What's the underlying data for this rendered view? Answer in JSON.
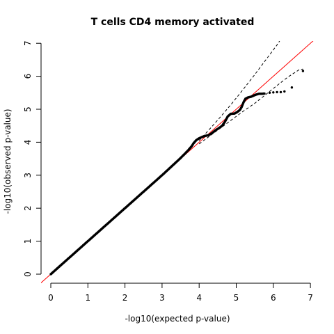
{
  "chart_data": {
    "type": "scatter",
    "title": "T cells CD4 memory activated",
    "xlabel": "-log10(expected p-value)",
    "ylabel": "-log10(observed p-value)",
    "xlim": [
      0,
      7
    ],
    "ylim": [
      0,
      7
    ],
    "xticks": [
      0,
      1,
      2,
      3,
      4,
      5,
      6,
      7
    ],
    "yticks": [
      0,
      1,
      2,
      3,
      4,
      5,
      6,
      7
    ],
    "grid": false,
    "legend": "none",
    "reference_line": {
      "label": "y = x",
      "color": "#ff0000"
    },
    "points_color": "#000000",
    "points_curve": [
      [
        0.0,
        0.0
      ],
      [
        0.5,
        0.5
      ],
      [
        1.0,
        1.0
      ],
      [
        1.5,
        1.5
      ],
      [
        2.0,
        2.0
      ],
      [
        2.5,
        2.5
      ],
      [
        3.0,
        3.0
      ],
      [
        3.5,
        3.52
      ],
      [
        3.7,
        3.75
      ],
      [
        3.8,
        3.88
      ],
      [
        3.85,
        3.97
      ],
      [
        3.92,
        4.06
      ],
      [
        4.0,
        4.12
      ],
      [
        4.08,
        4.16
      ],
      [
        4.15,
        4.19
      ],
      [
        4.25,
        4.21
      ],
      [
        4.35,
        4.28
      ],
      [
        4.45,
        4.37
      ],
      [
        4.55,
        4.44
      ],
      [
        4.62,
        4.5
      ],
      [
        4.7,
        4.63
      ],
      [
        4.77,
        4.78
      ],
      [
        4.85,
        4.86
      ],
      [
        4.95,
        4.87
      ],
      [
        5.02,
        4.91
      ],
      [
        5.1,
        4.98
      ],
      [
        5.15,
        5.08
      ],
      [
        5.2,
        5.22
      ],
      [
        5.25,
        5.32
      ],
      [
        5.32,
        5.36
      ],
      [
        5.4,
        5.38
      ],
      [
        5.48,
        5.42
      ],
      [
        5.55,
        5.45
      ],
      [
        5.62,
        5.47
      ],
      [
        5.7,
        5.47
      ],
      [
        5.78,
        5.48
      ]
    ],
    "points_sparse": [
      [
        5.9,
        5.5
      ],
      [
        6.0,
        5.51
      ],
      [
        6.1,
        5.52
      ],
      [
        6.2,
        5.52
      ],
      [
        6.3,
        5.54
      ],
      [
        6.5,
        5.66
      ],
      [
        6.8,
        6.16
      ]
    ],
    "ci_upper": [
      [
        4.0,
        4.05
      ],
      [
        4.3,
        4.42
      ],
      [
        4.6,
        4.8
      ],
      [
        4.9,
        5.2
      ],
      [
        5.2,
        5.62
      ],
      [
        5.5,
        6.05
      ],
      [
        5.8,
        6.5
      ],
      [
        6.1,
        6.95
      ],
      [
        6.36,
        7.4
      ]
    ],
    "ci_lower": [
      [
        4.0,
        3.95
      ],
      [
        4.3,
        4.2
      ],
      [
        4.6,
        4.45
      ],
      [
        4.9,
        4.7
      ],
      [
        5.2,
        4.95
      ],
      [
        5.5,
        5.18
      ],
      [
        5.8,
        5.45
      ],
      [
        6.1,
        5.72
      ],
      [
        6.4,
        5.98
      ],
      [
        6.7,
        6.2
      ],
      [
        6.8,
        6.22
      ]
    ]
  }
}
